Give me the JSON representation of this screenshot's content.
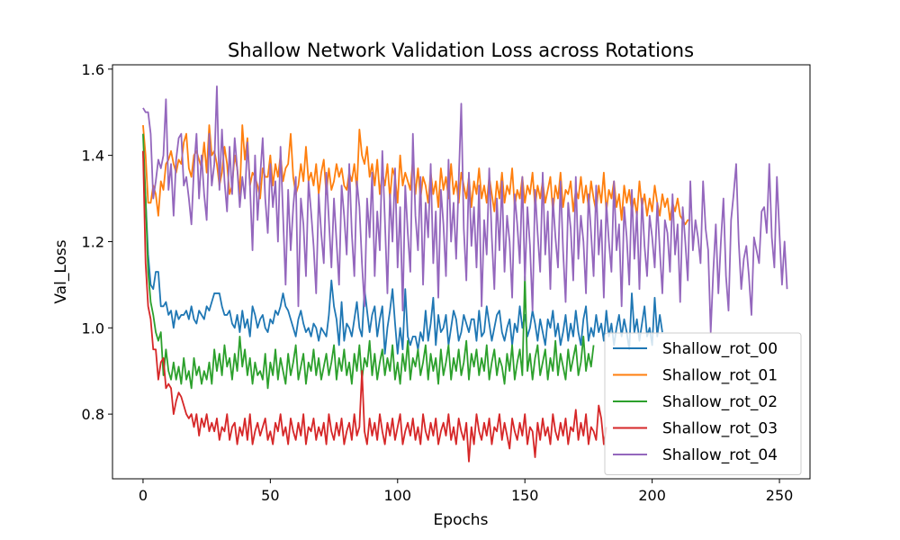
{
  "chart_data": {
    "type": "line",
    "title": "Shallow Network Validation Loss across Rotations",
    "xlabel": "Epochs",
    "ylabel": "Val_Loss",
    "xlim": [
      -12,
      262
    ],
    "ylim": [
      0.65,
      1.61
    ],
    "x_ticks": [
      0,
      50,
      100,
      150,
      200,
      250
    ],
    "y_ticks": [
      0.8,
      1.0,
      1.2,
      1.4,
      1.6
    ],
    "x_tick_labels": [
      "0",
      "50",
      "100",
      "150",
      "200",
      "250"
    ],
    "y_tick_labels": [
      "0.8",
      "1.0",
      "1.2",
      "1.4",
      "1.6"
    ],
    "grid": false,
    "legend_position": "lower-right",
    "series": [
      {
        "name": "Shallow_rot_00",
        "color": "#1f77b4",
        "values": [
          1.41,
          1.3,
          1.17,
          1.1,
          1.09,
          1.13,
          1.13,
          1.05,
          1.05,
          1.06,
          1.03,
          1.04,
          1.0,
          1.04,
          1.02,
          1.03,
          1.03,
          1.04,
          1.02,
          1.05,
          1.02,
          1.01,
          1.04,
          1.03,
          1.02,
          1.05,
          1.04,
          1.06,
          1.08,
          1.08,
          1.08,
          1.05,
          1.03,
          1.03,
          1.04,
          1.01,
          1.0,
          1.03,
          0.99,
          1.04,
          1.0,
          1.02,
          0.98,
          1.05,
          1.03,
          1.0,
          1.02,
          1.03,
          1.0,
          0.99,
          1.02,
          1.01,
          1.04,
          1.03,
          1.05,
          1.08,
          1.05,
          1.04,
          1.02,
          1.0,
          0.98,
          1.02,
          1.04,
          1.01,
          0.99,
          1.0,
          0.98,
          1.01,
          1.0,
          0.97,
          1.0,
          0.99,
          0.98,
          1.03,
          1.11,
          1.05,
          1.02,
          0.96,
          1.06,
          0.97,
          1.01,
          1.0,
          0.98,
          1.02,
          1.06,
          1.0,
          0.98,
          1.09,
          1.04,
          0.99,
          1.03,
          1.05,
          0.98,
          1.02,
          1.05,
          0.94,
          1.0,
          1.04,
          1.09,
          1.01,
          0.94,
          1.0,
          0.95,
          1.09,
          0.98,
          0.96,
          0.98,
          0.98,
          0.95,
          0.99,
          0.97,
          1.04,
          0.97,
          1.01,
          1.07,
          0.96,
          1.03,
          0.99,
          1.0,
          1.03,
          0.96,
          1.0,
          1.04,
          1.02,
          0.97,
          0.99,
          1.03,
          1.01,
          0.99,
          1.02,
          1.02,
          0.97,
          1.04,
          0.98,
          0.99,
          1.05,
          1.01,
          0.97,
          1.0,
          1.03,
          1.04,
          0.99,
          0.97,
          1.0,
          1.02,
          0.96,
          1.01,
          0.99,
          1.05,
          1.0,
          1.03,
          0.98,
          1.0,
          1.04,
          1.01,
          0.97,
          1.02,
          0.99,
          0.96,
          1.02,
          1.0,
          1.04,
          0.98,
          1.01,
          0.96,
          0.99,
          1.03,
          0.97,
          1.01,
          0.98,
          1.04,
          0.99,
          0.96,
          1.02,
          1.05,
          0.97,
          1.0,
          0.98,
          1.03,
          0.99,
          1.01,
          0.97,
          1.04,
          0.98,
          1.01,
          0.96,
          1.0,
          1.03,
          0.98,
          1.02,
          0.99,
          0.95,
          1.08,
          0.99,
          1.02,
          0.97,
          1.01,
          1.05,
          0.98,
          1.0,
          0.96,
          1.07,
          0.98,
          1.03,
          0.99
        ]
      },
      {
        "name": "Shallow_rot_01",
        "color": "#ff7f0e",
        "values": [
          1.47,
          1.4,
          1.29,
          1.29,
          1.33,
          1.31,
          1.26,
          1.34,
          1.32,
          1.38,
          1.39,
          1.41,
          1.38,
          1.36,
          1.39,
          1.38,
          1.43,
          1.45,
          1.37,
          1.35,
          1.4,
          1.41,
          1.39,
          1.37,
          1.43,
          1.36,
          1.47,
          1.4,
          1.41,
          1.38,
          1.33,
          1.36,
          1.42,
          1.38,
          1.31,
          1.33,
          1.4,
          1.37,
          1.31,
          1.47,
          1.39,
          1.44,
          1.33,
          1.36,
          1.35,
          1.33,
          1.3,
          1.37,
          1.35,
          1.35,
          1.4,
          1.33,
          1.38,
          1.35,
          1.4,
          1.34,
          1.37,
          1.38,
          1.45,
          1.35,
          1.31,
          1.33,
          1.38,
          1.34,
          1.42,
          1.34,
          1.36,
          1.33,
          1.38,
          1.31,
          1.36,
          1.39,
          1.31,
          1.37,
          1.32,
          1.34,
          1.38,
          1.35,
          1.37,
          1.33,
          1.32,
          1.36,
          1.34,
          1.38,
          1.32,
          1.46,
          1.4,
          1.38,
          1.42,
          1.35,
          1.38,
          1.33,
          1.39,
          1.31,
          1.36,
          1.33,
          1.38,
          1.3,
          1.37,
          1.35,
          1.29,
          1.4,
          1.33,
          1.36,
          1.34,
          1.32,
          1.39,
          1.31,
          1.37,
          1.3,
          1.35,
          1.33,
          1.29,
          1.36,
          1.31,
          1.34,
          1.28,
          1.37,
          1.32,
          1.35,
          1.3,
          1.38,
          1.31,
          1.34,
          1.29,
          1.36,
          1.33,
          1.3,
          1.35,
          1.28,
          1.34,
          1.31,
          1.37,
          1.3,
          1.33,
          1.29,
          1.35,
          1.31,
          1.27,
          1.34,
          1.3,
          1.36,
          1.29,
          1.33,
          1.31,
          1.37,
          1.28,
          1.32,
          1.3,
          1.35,
          1.29,
          1.33,
          1.31,
          1.36,
          1.28,
          1.33,
          1.3,
          1.34,
          1.29,
          1.32,
          1.35,
          1.27,
          1.33,
          1.3,
          1.36,
          1.28,
          1.32,
          1.31,
          1.34,
          1.27,
          1.32,
          1.3,
          1.35,
          1.29,
          1.33,
          1.28,
          1.34,
          1.3,
          1.27,
          1.33,
          1.29,
          1.36,
          1.27,
          1.32,
          1.3,
          1.34,
          1.28,
          1.31,
          1.25,
          1.33,
          1.29,
          1.32,
          1.27,
          1.3,
          1.26,
          1.34,
          1.28,
          1.31,
          1.26,
          1.3,
          1.27,
          1.33,
          1.29,
          1.26,
          1.31,
          1.28,
          1.3,
          1.25,
          1.29,
          1.27,
          1.3,
          1.26,
          1.25,
          1.24,
          1.25,
          1.25
        ]
      },
      {
        "name": "Shallow_rot_02",
        "color": "#2ca02c",
        "values": [
          1.45,
          1.3,
          1.13,
          1.06,
          1.03,
          0.99,
          0.97,
          0.99,
          0.89,
          0.95,
          0.9,
          0.88,
          0.92,
          0.88,
          0.91,
          0.87,
          0.93,
          0.88,
          0.9,
          0.86,
          0.93,
          0.89,
          0.91,
          0.87,
          0.9,
          0.88,
          0.92,
          0.87,
          0.95,
          0.9,
          0.94,
          0.89,
          0.96,
          0.91,
          0.93,
          0.88,
          0.94,
          0.9,
          0.98,
          0.91,
          0.95,
          0.89,
          0.93,
          0.87,
          0.92,
          0.89,
          0.9,
          0.88,
          0.94,
          0.86,
          0.92,
          0.89,
          0.95,
          0.88,
          0.93,
          0.9,
          0.87,
          0.94,
          0.89,
          0.92,
          0.96,
          0.88,
          0.91,
          0.94,
          0.87,
          0.92,
          0.9,
          0.95,
          0.89,
          0.93,
          0.88,
          0.91,
          0.94,
          0.89,
          0.92,
          0.96,
          0.88,
          0.93,
          0.9,
          0.95,
          0.89,
          0.92,
          0.87,
          0.94,
          0.9,
          0.96,
          0.88,
          0.93,
          0.91,
          0.97,
          0.89,
          0.94,
          0.88,
          0.92,
          0.95,
          0.89,
          0.93,
          0.9,
          0.96,
          0.88,
          0.92,
          0.87,
          0.94,
          0.9,
          0.97,
          0.88,
          0.93,
          0.91,
          0.95,
          0.89,
          0.92,
          0.96,
          0.88,
          0.94,
          0.9,
          0.93,
          0.87,
          0.95,
          0.89,
          0.92,
          0.96,
          0.88,
          0.93,
          0.9,
          0.95,
          0.89,
          0.92,
          0.97,
          0.88,
          0.94,
          0.91,
          0.95,
          0.89,
          0.93,
          0.9,
          0.96,
          0.88,
          0.92,
          0.95,
          0.89,
          0.93,
          0.91,
          0.87,
          0.94,
          0.9,
          0.96,
          0.88,
          0.92,
          0.95,
          0.89,
          1.12,
          0.9,
          0.94,
          0.88,
          0.93,
          0.96,
          0.89,
          0.92,
          0.95,
          0.88,
          0.93,
          0.9,
          0.97,
          0.89,
          0.94,
          0.91,
          0.88,
          0.95,
          0.9,
          0.93,
          0.96,
          0.89,
          0.92,
          0.98,
          0.9,
          0.94,
          0.91,
          0.96
        ]
      },
      {
        "name": "Shallow_rot_03",
        "color": "#d62728",
        "values": [
          1.41,
          1.15,
          1.05,
          1.02,
          0.95,
          0.95,
          0.88,
          0.92,
          0.93,
          0.86,
          0.87,
          0.86,
          0.8,
          0.83,
          0.85,
          0.84,
          0.82,
          0.8,
          0.79,
          0.8,
          0.77,
          0.8,
          0.75,
          0.79,
          0.77,
          0.8,
          0.76,
          0.78,
          0.76,
          0.79,
          0.74,
          0.77,
          0.76,
          0.8,
          0.74,
          0.77,
          0.78,
          0.73,
          0.77,
          0.75,
          0.79,
          0.74,
          0.8,
          0.73,
          0.76,
          0.78,
          0.75,
          0.77,
          0.79,
          0.74,
          0.76,
          0.73,
          0.78,
          0.76,
          0.8,
          0.75,
          0.77,
          0.73,
          0.79,
          0.76,
          0.74,
          0.78,
          0.75,
          0.8,
          0.73,
          0.77,
          0.76,
          0.79,
          0.74,
          0.77,
          0.75,
          0.78,
          0.73,
          0.8,
          0.76,
          0.74,
          0.78,
          0.75,
          0.79,
          0.73,
          0.76,
          0.78,
          0.74,
          0.8,
          0.75,
          0.77,
          0.9,
          0.76,
          0.73,
          0.79,
          0.75,
          0.78,
          0.74,
          0.8,
          0.76,
          0.73,
          0.78,
          0.75,
          0.79,
          0.74,
          0.77,
          0.8,
          0.73,
          0.76,
          0.78,
          0.75,
          0.79,
          0.74,
          0.77,
          0.73,
          0.8,
          0.76,
          0.74,
          0.78,
          0.75,
          0.79,
          0.73,
          0.76,
          0.78,
          0.75,
          0.8,
          0.74,
          0.77,
          0.73,
          0.79,
          0.76,
          0.74,
          0.78,
          0.69,
          0.77,
          0.73,
          0.8,
          0.76,
          0.74,
          0.78,
          0.75,
          0.79,
          0.73,
          0.77,
          0.76,
          0.8,
          0.74,
          0.78,
          0.75,
          0.72,
          0.79,
          0.76,
          0.74,
          0.78,
          0.75,
          0.8,
          0.73,
          0.77,
          0.76,
          0.7,
          0.78,
          0.74,
          0.79,
          0.75,
          0.77,
          0.73,
          0.8,
          0.76,
          0.74,
          0.78,
          0.75,
          0.79,
          0.73,
          0.77,
          0.76,
          0.81,
          0.74,
          0.78,
          0.75,
          0.8,
          0.73,
          0.77,
          0.76,
          0.74,
          0.82,
          0.79,
          0.73,
          0.77
        ]
      },
      {
        "name": "Shallow_rot_04",
        "color": "#9467bd",
        "values": [
          1.51,
          1.5,
          1.5,
          1.45,
          1.3,
          1.34,
          1.39,
          1.37,
          1.4,
          1.53,
          1.32,
          1.38,
          1.26,
          1.39,
          1.44,
          1.45,
          1.33,
          1.35,
          1.3,
          1.24,
          1.37,
          1.45,
          1.3,
          1.4,
          1.31,
          1.25,
          1.45,
          1.33,
          1.38,
          1.56,
          1.32,
          1.46,
          1.34,
          1.27,
          1.42,
          1.31,
          1.44,
          1.37,
          1.28,
          1.35,
          1.3,
          1.43,
          1.33,
          1.18,
          1.4,
          1.25,
          1.35,
          1.44,
          1.3,
          1.22,
          1.38,
          1.28,
          1.34,
          1.2,
          1.42,
          1.26,
          1.1,
          1.32,
          1.18,
          1.28,
          1.35,
          1.05,
          1.3,
          1.24,
          1.12,
          1.34,
          1.27,
          1.19,
          1.08,
          1.31,
          1.22,
          1.15,
          1.36,
          1.25,
          1.14,
          1.3,
          1.2,
          1.1,
          1.33,
          1.26,
          1.17,
          1.38,
          1.22,
          1.12,
          1.34,
          1.28,
          1.15,
          1.05,
          1.3,
          1.21,
          1.36,
          1.12,
          1.27,
          1.18,
          1.41,
          1.25,
          1.08,
          1.31,
          1.2,
          1.37,
          1.14,
          1.28,
          1.04,
          1.33,
          1.22,
          1.13,
          1.45,
          1.26,
          1.18,
          1.35,
          1.1,
          1.29,
          1.21,
          1.38,
          1.15,
          1.27,
          1.07,
          1.32,
          1.24,
          1.12,
          1.39,
          1.2,
          1.29,
          1.16,
          1.34,
          1.52,
          1.23,
          1.11,
          1.36,
          1.19,
          1.28,
          1.14,
          1.33,
          1.05,
          1.25,
          1.17,
          1.37,
          1.21,
          1.09,
          1.3,
          1.18,
          1.34,
          1.13,
          1.26,
          1.2,
          1.07,
          1.31,
          1.24,
          1.15,
          1.35,
          1.11,
          1.28,
          1.19,
          1.04,
          1.32,
          1.22,
          1.13,
          1.36,
          1.17,
          1.27,
          1.09,
          1.3,
          1.21,
          1.14,
          1.34,
          1.18,
          1.06,
          1.29,
          1.23,
          1.11,
          1.35,
          1.16,
          1.26,
          1.2,
          1.08,
          1.31,
          1.22,
          1.12,
          1.33,
          1.17,
          1.25,
          1.07,
          1.29,
          1.2,
          1.13,
          1.34,
          1.18,
          1.24,
          1.05,
          1.28,
          1.21,
          1.1,
          1.32,
          1.16,
          1.27,
          1.09,
          1.3,
          1.19,
          1.12,
          1.26,
          1.21,
          1.14,
          1.29,
          1.18,
          1.08,
          1.25,
          1.22,
          1.13,
          1.31,
          1.17,
          1.24,
          1.06,
          1.28,
          1.2,
          1.11,
          1.34,
          1.18,
          1.25,
          1.21,
          1.15,
          1.34,
          1.23,
          1.18,
          0.99,
          1.13,
          1.24,
          1.08,
          1.2,
          1.3,
          1.12,
          1.04,
          1.25,
          1.31,
          1.38,
          1.2,
          1.09,
          1.16,
          1.19,
          1.12,
          1.03,
          1.21,
          1.18,
          1.15,
          1.27,
          1.28,
          1.22,
          1.38,
          1.21,
          1.14,
          1.35,
          1.22,
          1.1,
          1.2,
          1.09
        ]
      }
    ]
  }
}
